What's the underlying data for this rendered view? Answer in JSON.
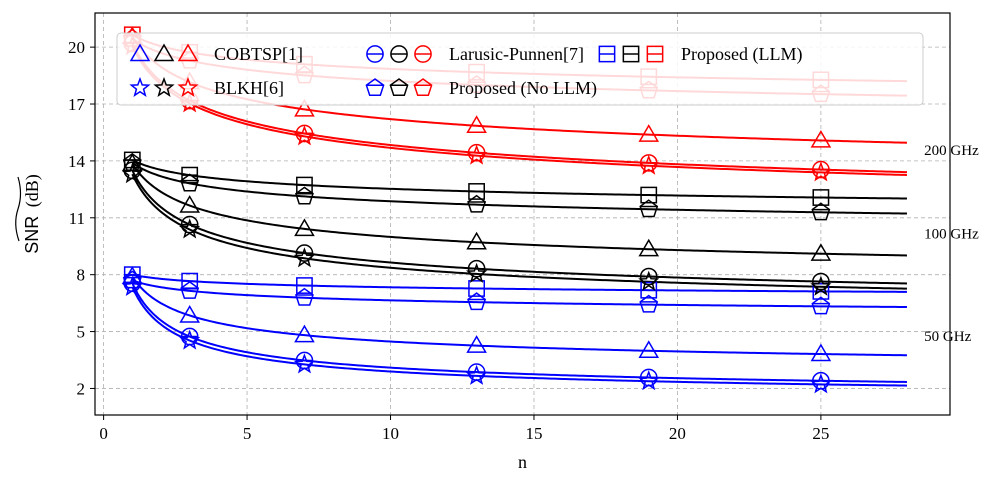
{
  "chart_data": {
    "type": "line",
    "xlabel": "n",
    "ylabel_symbol": "SNR",
    "ylabel_unit": "(dB)",
    "xlim": [
      -0.3,
      29.5
    ],
    "ylim": [
      0.6,
      21.8
    ],
    "xticks": [
      0,
      5,
      10,
      15,
      20,
      25
    ],
    "yticks": [
      2,
      5,
      8,
      11,
      14,
      17,
      20
    ],
    "grid": true,
    "marker_x": [
      1,
      3,
      7,
      13,
      19,
      25
    ],
    "curve_x_max": 28,
    "colors": {
      "50 GHz": "#0000ff",
      "100 GHz": "#000000",
      "200 GHz": "#ff0000"
    },
    "annotations": [
      {
        "text": "200 GHz",
        "x": 28.6,
        "y": 14.3
      },
      {
        "text": "100 GHz",
        "x": 28.6,
        "y": 9.9
      },
      {
        "text": "50 GHz",
        "x": 28.6,
        "y": 4.5
      }
    ],
    "series": [
      {
        "name": "COBTSP[1]",
        "band": "50 GHz",
        "marker": "triangle",
        "y1": 7.9,
        "a": 2.45,
        "b": 0.43
      },
      {
        "name": "BLKH[6]",
        "band": "50 GHz",
        "marker": "star",
        "y1": 7.35,
        "a": 1.2,
        "b": 0.56
      },
      {
        "name": "Larusic-Punnen[7]",
        "band": "50 GHz",
        "marker": "circle",
        "y1": 7.55,
        "a": 1.35,
        "b": 0.55
      },
      {
        "name": "Proposed (No LLM)",
        "band": "50 GHz",
        "marker": "pentagon",
        "y1": 7.7,
        "a": 4.45,
        "b": 0.17
      },
      {
        "name": "Proposed (LLM)",
        "band": "50 GHz",
        "marker": "square",
        "y1": 8.0,
        "a": 5.25,
        "b": 0.12
      },
      {
        "name": "COBTSP[1]",
        "band": "100 GHz",
        "marker": "triangle",
        "y1": 13.85,
        "a": 6.6,
        "b": 0.33
      },
      {
        "name": "BLKH[6]",
        "band": "100 GHz",
        "marker": "star",
        "y1": 13.3,
        "a": 5.1,
        "b": 0.4
      },
      {
        "name": "Larusic-Punnen[7]",
        "band": "100 GHz",
        "marker": "circle",
        "y1": 13.5,
        "a": 5.3,
        "b": 0.39
      },
      {
        "name": "Proposed (No LLM)",
        "band": "100 GHz",
        "marker": "pentagon",
        "y1": 13.9,
        "a": 8.4,
        "b": 0.2
      },
      {
        "name": "Proposed (LLM)",
        "band": "100 GHz",
        "marker": "square",
        "y1": 14.05,
        "a": 9.35,
        "b": 0.17
      },
      {
        "name": "COBTSP[1]",
        "band": "200 GHz",
        "marker": "triangle",
        "y1": 20.55,
        "a": 10.9,
        "b": 0.26
      },
      {
        "name": "BLKH[6]",
        "band": "200 GHz",
        "marker": "star",
        "y1": 20.05,
        "a": 9.3,
        "b": 0.3
      },
      {
        "name": "Larusic-Punnen[7]",
        "band": "200 GHz",
        "marker": "circle",
        "y1": 20.2,
        "a": 9.45,
        "b": 0.3
      },
      {
        "name": "Proposed (No LLM)",
        "band": "200 GHz",
        "marker": "pentagon",
        "y1": 20.45,
        "a": 12.8,
        "b": 0.15
      },
      {
        "name": "Proposed (LLM)",
        "band": "200 GHz",
        "marker": "square",
        "y1": 20.65,
        "a": 13.7,
        "b": 0.13
      }
    ],
    "legend": {
      "placement": "top",
      "entries": [
        {
          "label": "COBTSP[1]",
          "marker": "triangle"
        },
        {
          "label": "Larusic-Punnen[7]",
          "marker": "circle"
        },
        {
          "label": "Proposed (LLM)",
          "marker": "square"
        },
        {
          "label": "BLKH[6]",
          "marker": "star"
        },
        {
          "label": "Proposed (No LLM)",
          "marker": "pentagon"
        }
      ]
    }
  }
}
